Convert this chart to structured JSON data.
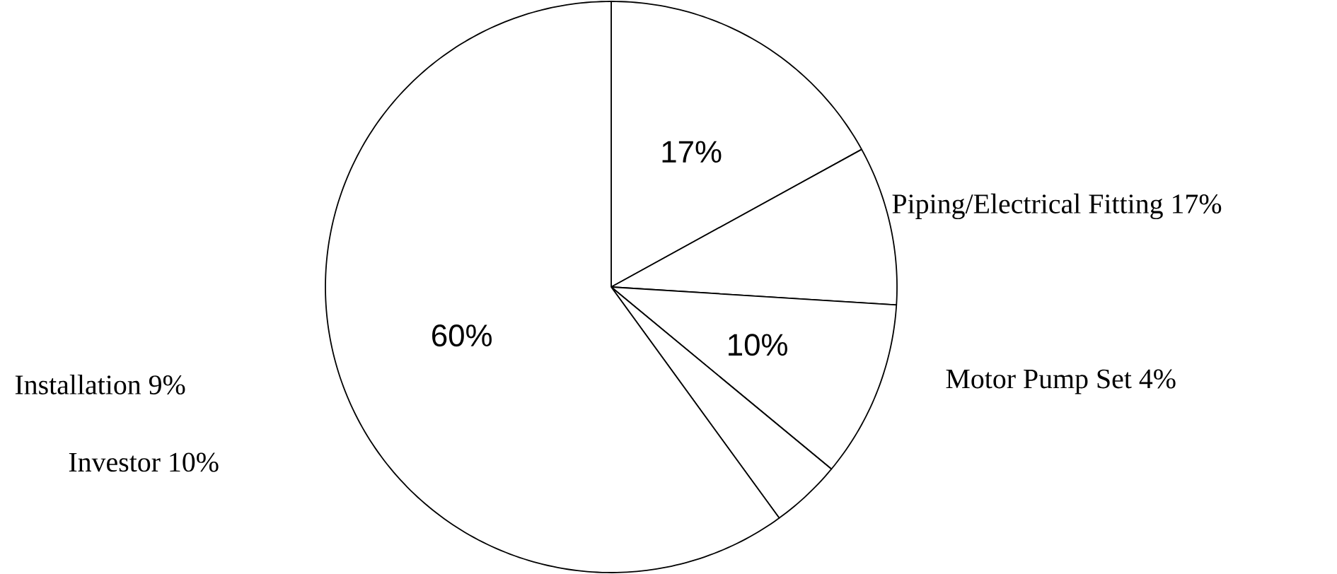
{
  "chart_data": {
    "type": "pie",
    "categories": [
      null,
      null,
      null,
      null,
      null
    ],
    "values": [
      17,
      9,
      10,
      4,
      60
    ],
    "colors": [
      "#ffffff",
      "#ffffff",
      "#ffffff",
      "#ffffff",
      "#ffffff"
    ],
    "value_labels": [
      "17%",
      null,
      "10%",
      null,
      "60%"
    ],
    "annotations": [
      "Piping/Electrical Fitting 17%",
      "Motor Pump Set 4%",
      "Installation 9%",
      "Investor 10%"
    ]
  }
}
